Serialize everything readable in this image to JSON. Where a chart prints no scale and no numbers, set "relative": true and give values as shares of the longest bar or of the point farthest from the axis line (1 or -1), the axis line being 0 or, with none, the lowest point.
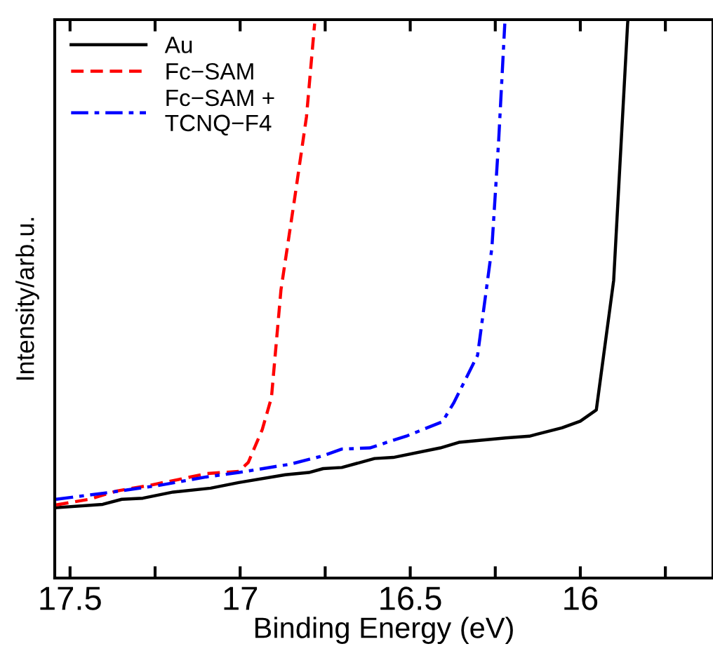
{
  "chart_data": {
    "type": "line",
    "relative": true,
    "xlabel": "Binding Energy (eV)",
    "ylabel": "Intensity/arb.u.",
    "xlim": [
      17.545,
      15.61
    ],
    "xticks": [
      17.5,
      {
        "value": 17.25,
        "label": null
      },
      17,
      {
        "value": 16.75,
        "label": null
      },
      16.5,
      {
        "value": 16.25,
        "label": null
      },
      16,
      {
        "value": 15.75,
        "label": null
      }
    ],
    "tick_labels": "x",
    "legend": "top left",
    "grid": false,
    "series": [
      {
        "name": "Au",
        "color": "#000000",
        "line_style": "solid",
        "x": [
          17.541,
          17.404,
          17.348,
          17.286,
          17.197,
          17.087,
          17.004,
          16.867,
          16.798,
          16.756,
          16.701,
          16.605,
          16.55,
          16.412,
          16.357,
          16.219,
          16.15,
          16.054,
          16.0,
          15.953,
          15.902,
          15.861,
          15.86
        ],
        "values": [
          0.126,
          0.132,
          0.141,
          0.143,
          0.154,
          0.161,
          0.171,
          0.185,
          0.189,
          0.196,
          0.198,
          0.214,
          0.216,
          0.233,
          0.243,
          0.251,
          0.254,
          0.269,
          0.281,
          0.301,
          0.533,
          0.993,
          1.0
        ]
      },
      {
        "name": "Fc−SAM",
        "color": "#ff0000",
        "line_style": "dashed",
        "x": [
          17.541,
          17.445,
          17.362,
          17.266,
          17.169,
          17.1,
          17.004,
          16.976,
          16.935,
          16.908,
          16.88,
          16.839,
          16.805,
          16.781
        ],
        "values": [
          0.131,
          0.141,
          0.156,
          0.166,
          0.178,
          0.187,
          0.191,
          0.207,
          0.266,
          0.323,
          0.516,
          0.683,
          0.826,
          0.993
        ]
      },
      {
        "name": "Fc−SAM +\nTCNQ−F4",
        "color": "#0000ff",
        "line_style": "dashdot",
        "x": [
          17.541,
          17.376,
          17.238,
          17.1,
          17.004,
          16.852,
          16.756,
          16.701,
          16.619,
          16.508,
          16.405,
          16.371,
          16.302,
          16.26,
          16.24,
          16.222
        ],
        "values": [
          0.141,
          0.154,
          0.166,
          0.181,
          0.189,
          0.204,
          0.219,
          0.231,
          0.233,
          0.255,
          0.28,
          0.315,
          0.399,
          0.591,
          0.784,
          0.993
        ]
      }
    ]
  }
}
